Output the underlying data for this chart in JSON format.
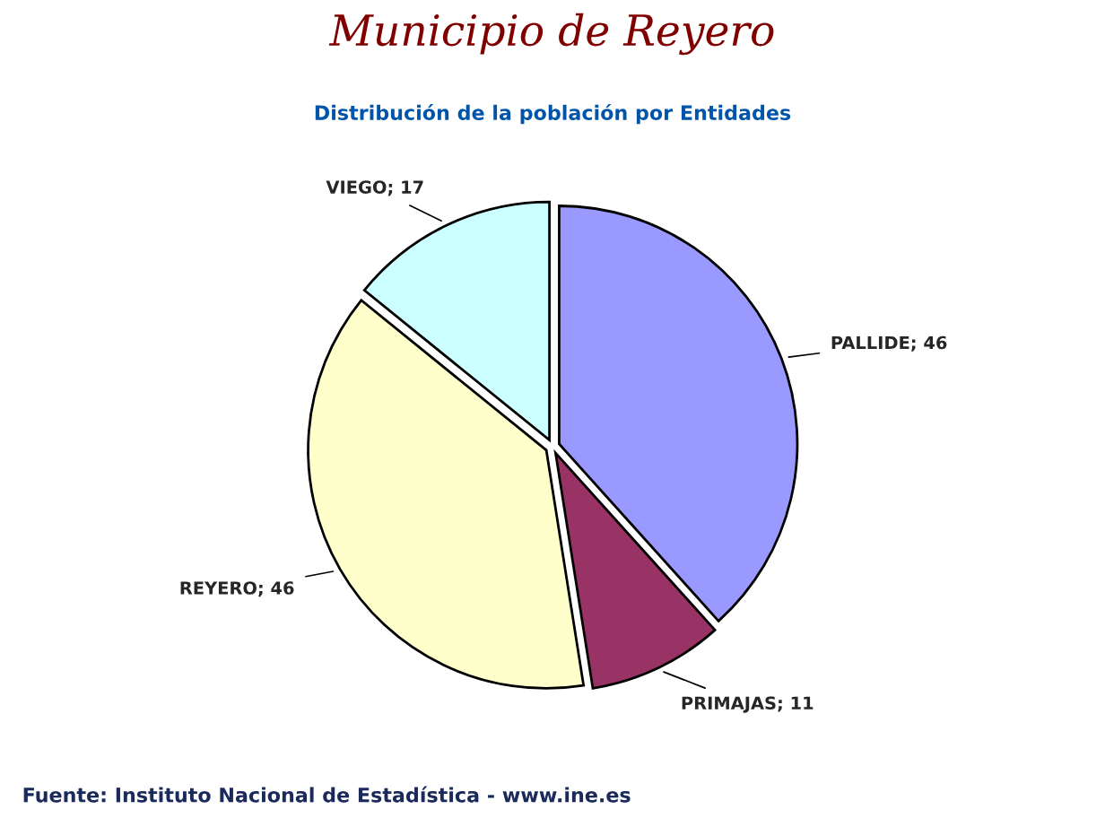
{
  "chart_data": {
    "type": "pie",
    "title": "Municipio de Reyero",
    "subtitle": "Distribución de la población por Entidades",
    "categories": [
      "PALLIDE; 46",
      "PRIMAJAS; 11",
      "REYERO; 46",
      "VIEGO; 17"
    ],
    "values": [
      46,
      11,
      46,
      17
    ],
    "colors": [
      "#9999ff",
      "#993366",
      "#ffffcc",
      "#ccffff"
    ],
    "annotations": [
      "Fuente: Instituto Nacional de Estadística - www.ine.es"
    ]
  }
}
